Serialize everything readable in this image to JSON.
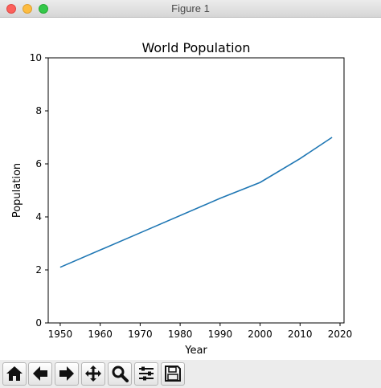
{
  "window": {
    "title": "Figure 1"
  },
  "toolbar": {
    "buttons": [
      {
        "icon": "home-icon",
        "name": "home-button"
      },
      {
        "icon": "back-arrow-icon",
        "name": "back-button"
      },
      {
        "icon": "forward-arrow-icon",
        "name": "forward-button"
      },
      {
        "icon": "pan-move-icon",
        "name": "pan-button"
      },
      {
        "icon": "zoom-magnifier-icon",
        "name": "zoom-button"
      },
      {
        "icon": "configure-subplots-icon",
        "name": "subplots-button"
      },
      {
        "icon": "save-floppy-icon",
        "name": "save-button"
      }
    ]
  },
  "chart_data": {
    "type": "line",
    "title": "World Population",
    "xlabel": "Year",
    "ylabel": "Population",
    "xlim": [
      1947,
      2021
    ],
    "ylim": [
      0,
      10
    ],
    "xticks": [
      "1950",
      "1960",
      "1970",
      "1980",
      "1990",
      "2000",
      "2010",
      "2020"
    ],
    "yticks": [
      "0",
      "2",
      "4",
      "6",
      "8",
      "10"
    ],
    "series": [
      {
        "x": [
          1950,
          1970,
          1990,
          2000,
          2010,
          2018
        ],
        "values": [
          2.1,
          3.4,
          4.7,
          5.3,
          6.2,
          7.0
        ],
        "color": "#1f77b4"
      }
    ]
  }
}
